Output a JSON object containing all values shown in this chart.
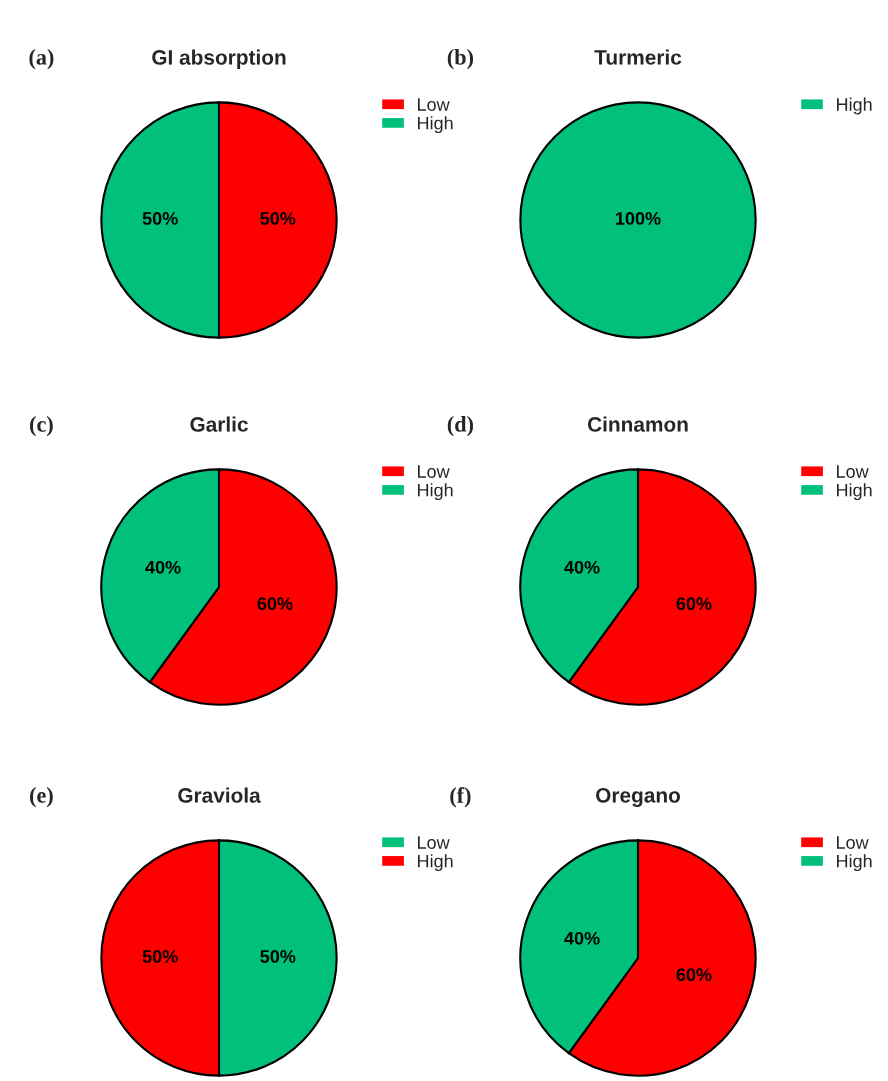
{
  "chart_data": [
    {
      "type": "pie",
      "title": "GI absorption",
      "annotations": [
        "(a)"
      ],
      "categories": [
        "Low",
        "High"
      ],
      "values": [
        50,
        50
      ],
      "colors": [
        "#fe0000",
        "#00c07b"
      ],
      "value_labels": [
        "50%",
        "50%"
      ],
      "legend": "top right"
    },
    {
      "type": "pie",
      "title": "Turmeric",
      "annotations": [
        "(b)"
      ],
      "categories": [
        "High"
      ],
      "values": [
        100
      ],
      "colors": [
        "#00c07b"
      ],
      "value_labels": [
        "100%"
      ],
      "legend": "top right"
    },
    {
      "type": "pie",
      "title": "Garlic",
      "annotations": [
        "(c)"
      ],
      "categories": [
        "Low",
        "High"
      ],
      "values": [
        60,
        40
      ],
      "colors": [
        "#fe0000",
        "#00c07b"
      ],
      "value_labels": [
        "60%",
        "40%"
      ],
      "legend": "top right"
    },
    {
      "type": "pie",
      "title": "Cinnamon",
      "annotations": [
        "(d)"
      ],
      "categories": [
        "Low",
        "High"
      ],
      "values": [
        60,
        40
      ],
      "colors": [
        "#fe0000",
        "#00c07b"
      ],
      "value_labels": [
        "60%",
        "40%"
      ],
      "legend": "top right"
    },
    {
      "type": "pie",
      "title": "Graviola",
      "annotations": [
        "(e)"
      ],
      "categories": [
        "Low",
        "High"
      ],
      "values": [
        50,
        50
      ],
      "colors": [
        "#00c07b",
        "#fe0000"
      ],
      "value_labels": [
        "50%",
        "50%"
      ],
      "legend": "top right"
    },
    {
      "type": "pie",
      "title": "Oregano",
      "annotations": [
        "(f)"
      ],
      "categories": [
        "Low",
        "High"
      ],
      "values": [
        60,
        40
      ],
      "colors": [
        "#fe0000",
        "#00c07b"
      ],
      "value_labels": [
        "60%",
        "40%"
      ],
      "legend": "top right"
    }
  ]
}
